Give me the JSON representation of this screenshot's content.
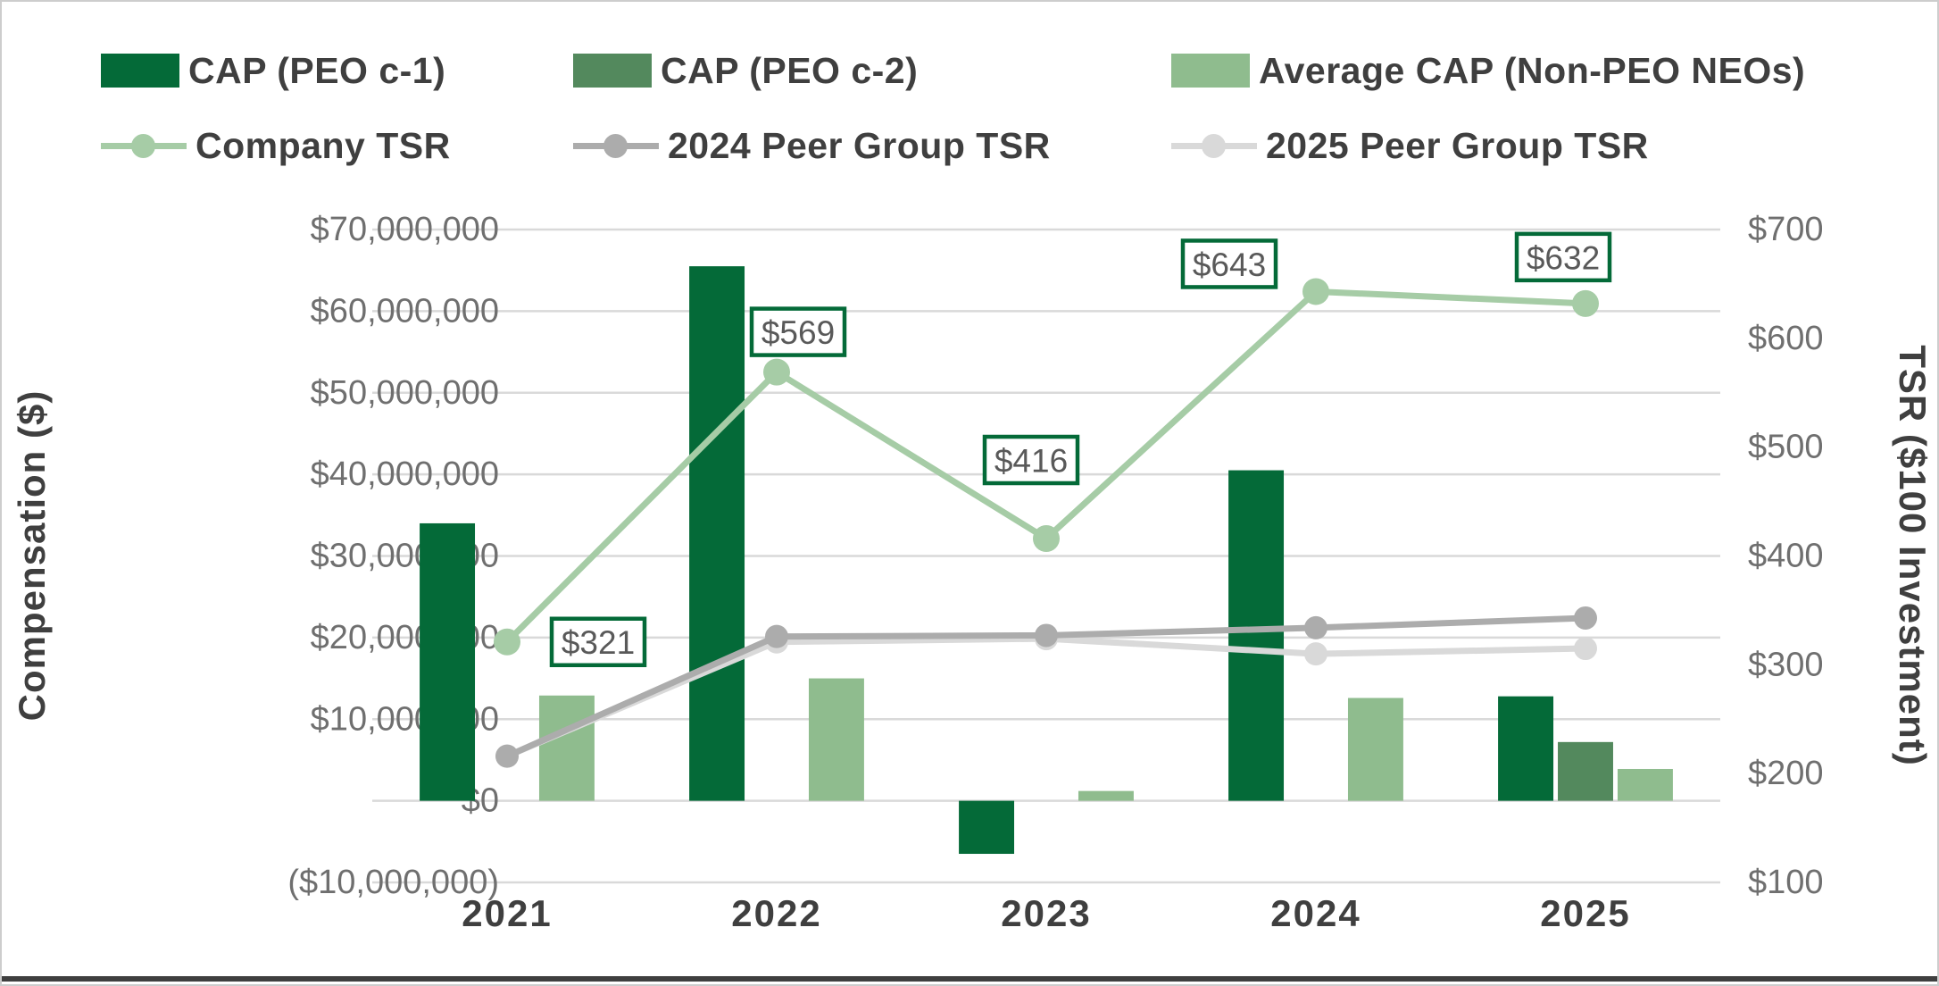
{
  "chart_data": {
    "type": "bar",
    "subtype": "combo-bar-line",
    "categories": [
      "2021",
      "2022",
      "2023",
      "2024",
      "2025"
    ],
    "bar_series": [
      {
        "name": "CAP (PEO c-1)",
        "color": "#046A38",
        "values": [
          34000000,
          65500000,
          -6500000,
          40500000,
          12800000
        ]
      },
      {
        "name": "CAP (PEO c-2)",
        "color": "#53895D",
        "values": [
          null,
          null,
          null,
          null,
          7200000
        ]
      },
      {
        "name": "Average CAP (Non-PEO NEOs)",
        "color": "#8FBC8E",
        "values": [
          12900000,
          15000000,
          1200000,
          12600000,
          3900000
        ]
      }
    ],
    "line_series": [
      {
        "name": "Company TSR",
        "color": "#A6CCA6",
        "values": [
          321,
          569,
          416,
          643,
          632
        ]
      },
      {
        "name": "2024 Peer Group TSR",
        "color": "#ACACAC",
        "values": [
          216,
          326,
          327,
          334,
          343
        ]
      },
      {
        "name": "2025 Peer Group TSR",
        "color": "#D9D9D9",
        "values": [
          216,
          321,
          324,
          310,
          315
        ]
      }
    ],
    "point_labels": [
      "$321",
      "$569",
      "$416",
      "$643",
      "$632"
    ],
    "left_axis": {
      "title": "Compensation ($)",
      "min": -10000000,
      "max": 70000000,
      "tick_labels": [
        "$70,000,000",
        "$60,000,000",
        "$50,000,000",
        "$40,000,000",
        "$30,000,000",
        "$20,000,000",
        "$10,000,000",
        "$0",
        "($10,000,000)"
      ]
    },
    "right_axis": {
      "title": "TSR ($100 Investment)",
      "min": 100,
      "max": 700,
      "tick_labels": [
        "$700",
        "$600",
        "$500",
        "$400",
        "$300",
        "$200",
        "$100"
      ]
    },
    "grid": "horizontal",
    "legend_position": "top-left",
    "colors": {
      "grid": "#D9D9D9",
      "label_box_border": "#046A38",
      "label_box_fill": "#FFFFFF",
      "label_text": "#595959",
      "tick_text": "#6F6F6F",
      "axis_title_text": "#3F3F3F",
      "year_label_text": "#3F3F3F"
    }
  }
}
